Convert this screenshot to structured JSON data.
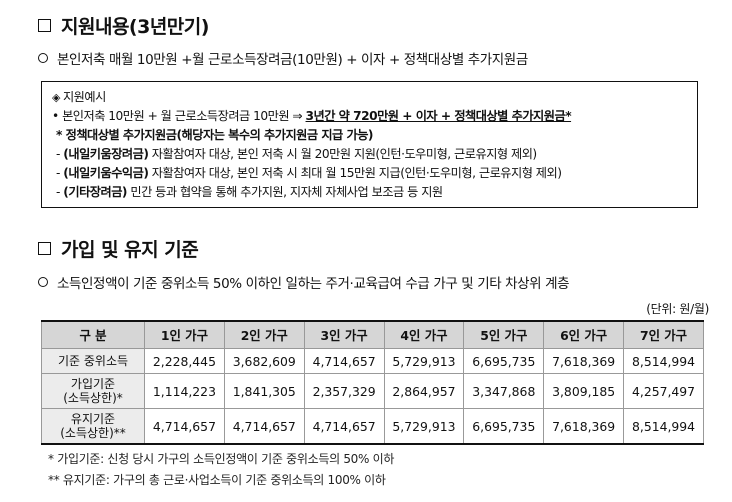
{
  "section1": {
    "title": "지원내용(3년만기)",
    "subtitle": "본인저축 매월 10만원  +월 근로소득장려금(10만원)  +  이자 + 정책대상별 추가지원금"
  },
  "example_box": {
    "header": "지원예시",
    "line1_prefix": "• 본인저축 10만원 + 월 근로소득장려금 10만원 ⇒ ",
    "line1_emph": "3년간 약 720만원 + 이자 + 정책대상별 추가지원금*",
    "policy_title": "* 정책대상별 추가지원금(해당자는 복수의 추가지원금 지급 가능)",
    "items": [
      {
        "name": "(내일키움장려금)",
        "desc": " 자활참여자 대상, 본인 저축 시 월 20만원 지원(인턴·도우미형, 근로유지형 제외)"
      },
      {
        "name": "(내일키움수익금)",
        "desc": " 자활참여자 대상, 본인 저축 시 최대 월 15만원 지급(인턴·도우미형, 근로유지형 제외)"
      },
      {
        "name": "(기타장려금)",
        "desc": " 민간 등과 협약을 통해 추가지원, 지자체 자체사업 보조금 등 지원"
      }
    ]
  },
  "section2": {
    "title": "가입 및 유지 기준",
    "subtitle": "소득인정액이 기준 중위소득 50% 이하인 일하는 주거·교육급여 수급 가구 및 기타 차상위 계층",
    "unit": "(단위: 원/월)"
  },
  "table": {
    "headers": [
      "구 분",
      "1인 가구",
      "2인 가구",
      "3인 가구",
      "4인 가구",
      "5인 가구",
      "6인 가구",
      "7인 가구"
    ],
    "rows": [
      {
        "label1": "기준 중위소득",
        "label2": "",
        "values": [
          "2,228,445",
          "3,682,609",
          "4,714,657",
          "5,729,913",
          "6,695,735",
          "7,618,369",
          "8,514,994"
        ]
      },
      {
        "label1": "가입기준",
        "label2": "(소득상한)*",
        "values": [
          "1,114,223",
          "1,841,305",
          "2,357,329",
          "2,864,957",
          "3,347,868",
          "3,809,185",
          "4,257,497"
        ]
      },
      {
        "label1": "유지기준",
        "label2": "(소득상한)**",
        "values": [
          "4,714,657",
          "4,714,657",
          "4,714,657",
          "5,729,913",
          "6,695,735",
          "7,618,369",
          "8,514,994"
        ]
      }
    ]
  },
  "notes": [
    "*  가입기준: 신청 당시 가구의 소득인정액이 기준 중위소득의 50% 이하",
    "**  유지기준: 가구의 총 근로·사업소득이 기준 중위소득의 100% 이하"
  ]
}
